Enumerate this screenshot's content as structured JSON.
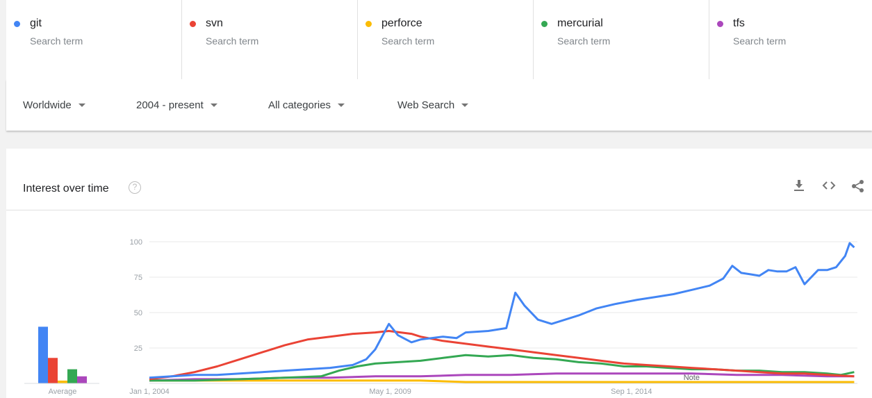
{
  "terms": [
    {
      "name": "git",
      "sub": "Search term",
      "color": "#4285f4"
    },
    {
      "name": "svn",
      "sub": "Search term",
      "color": "#ea4335"
    },
    {
      "name": "perforce",
      "sub": "Search term",
      "color": "#fbbc04"
    },
    {
      "name": "mercurial",
      "sub": "Search term",
      "color": "#34a853"
    },
    {
      "name": "tfs",
      "sub": "Search term",
      "color": "#ab47bc"
    }
  ],
  "filters": {
    "region": "Worldwide",
    "time": "2004 - present",
    "category": "All categories",
    "property": "Web Search"
  },
  "card": {
    "title": "Interest over time",
    "help": "?",
    "icons": [
      "download-icon",
      "embed-icon",
      "share-icon"
    ]
  },
  "chart_data": {
    "type": "line",
    "title": "Interest over time",
    "x_start": "2004-01",
    "x_end": "2017-11",
    "x_ticks": [
      "Jan 1, 2004",
      "May 1, 2009",
      "Sep 1, 2014"
    ],
    "y_ticks": [
      25,
      50,
      75,
      100
    ],
    "ylim": [
      0,
      100
    ],
    "grid": true,
    "note_label": "Note",
    "average": {
      "label": "Average",
      "values": [
        {
          "term": "git",
          "value": 40
        },
        {
          "term": "svn",
          "value": 18
        },
        {
          "term": "perforce",
          "value": 2
        },
        {
          "term": "mercurial",
          "value": 10
        },
        {
          "term": "tfs",
          "value": 5
        }
      ]
    },
    "series": [
      {
        "name": "git",
        "color": "#4285f4",
        "points": [
          [
            2004.0,
            4
          ],
          [
            2004.5,
            5
          ],
          [
            2005.0,
            6
          ],
          [
            2005.5,
            6
          ],
          [
            2006.0,
            7
          ],
          [
            2006.5,
            8
          ],
          [
            2007.0,
            9
          ],
          [
            2007.5,
            10
          ],
          [
            2008.0,
            11
          ],
          [
            2008.5,
            13
          ],
          [
            2008.8,
            17
          ],
          [
            2009.0,
            24
          ],
          [
            2009.3,
            42
          ],
          [
            2009.5,
            34
          ],
          [
            2009.8,
            29
          ],
          [
            2010.0,
            31
          ],
          [
            2010.5,
            33
          ],
          [
            2010.8,
            32
          ],
          [
            2011.0,
            36
          ],
          [
            2011.5,
            37
          ],
          [
            2011.9,
            39
          ],
          [
            2012.1,
            64
          ],
          [
            2012.3,
            55
          ],
          [
            2012.6,
            45
          ],
          [
            2012.9,
            42
          ],
          [
            2013.2,
            45
          ],
          [
            2013.5,
            48
          ],
          [
            2013.9,
            53
          ],
          [
            2014.3,
            56
          ],
          [
            2014.8,
            59
          ],
          [
            2015.2,
            61
          ],
          [
            2015.6,
            63
          ],
          [
            2016.0,
            66
          ],
          [
            2016.4,
            69
          ],
          [
            2016.7,
            74
          ],
          [
            2016.9,
            83
          ],
          [
            2017.1,
            78
          ],
          [
            2017.3,
            77
          ],
          [
            2017.5,
            76
          ],
          [
            2017.7,
            80
          ],
          [
            2017.9,
            79
          ],
          [
            2018.1,
            79
          ],
          [
            2018.3,
            82
          ],
          [
            2018.5,
            70
          ],
          [
            2018.8,
            80
          ],
          [
            2019.0,
            80
          ],
          [
            2019.2,
            82
          ],
          [
            2019.4,
            90
          ],
          [
            2019.5,
            99
          ],
          [
            2019.6,
            96
          ]
        ]
      },
      {
        "name": "svn",
        "color": "#ea4335",
        "points": [
          [
            2004.0,
            3
          ],
          [
            2004.5,
            5
          ],
          [
            2005.0,
            8
          ],
          [
            2005.5,
            12
          ],
          [
            2006.0,
            17
          ],
          [
            2006.5,
            22
          ],
          [
            2007.0,
            27
          ],
          [
            2007.5,
            31
          ],
          [
            2008.0,
            33
          ],
          [
            2008.5,
            35
          ],
          [
            2009.0,
            36
          ],
          [
            2009.3,
            37
          ],
          [
            2009.8,
            35
          ],
          [
            2010.0,
            33
          ],
          [
            2010.5,
            30
          ],
          [
            2011.0,
            28
          ],
          [
            2011.5,
            26
          ],
          [
            2012.0,
            24
          ],
          [
            2012.5,
            22
          ],
          [
            2013.0,
            20
          ],
          [
            2013.5,
            18
          ],
          [
            2014.0,
            16
          ],
          [
            2014.5,
            14
          ],
          [
            2015.0,
            13
          ],
          [
            2015.5,
            12
          ],
          [
            2016.0,
            11
          ],
          [
            2016.5,
            10
          ],
          [
            2017.0,
            9
          ],
          [
            2017.5,
            8
          ],
          [
            2018.0,
            7
          ],
          [
            2018.5,
            7
          ],
          [
            2019.0,
            6
          ],
          [
            2019.6,
            5
          ]
        ]
      },
      {
        "name": "perforce",
        "color": "#fbbc04",
        "points": [
          [
            2004.0,
            2
          ],
          [
            2005.0,
            2
          ],
          [
            2006.0,
            2
          ],
          [
            2007.0,
            2
          ],
          [
            2008.0,
            2
          ],
          [
            2009.0,
            2
          ],
          [
            2010.0,
            2
          ],
          [
            2011.0,
            1
          ],
          [
            2012.0,
            1
          ],
          [
            2013.0,
            1
          ],
          [
            2014.0,
            1
          ],
          [
            2015.0,
            1
          ],
          [
            2016.0,
            1
          ],
          [
            2017.0,
            1
          ],
          [
            2018.0,
            1
          ],
          [
            2019.0,
            1
          ],
          [
            2019.6,
            1
          ]
        ]
      },
      {
        "name": "mercurial",
        "color": "#34a853",
        "points": [
          [
            2004.0,
            2
          ],
          [
            2005.0,
            2
          ],
          [
            2006.0,
            3
          ],
          [
            2007.0,
            4
          ],
          [
            2007.8,
            5
          ],
          [
            2008.2,
            9
          ],
          [
            2008.6,
            12
          ],
          [
            2009.0,
            14
          ],
          [
            2009.5,
            15
          ],
          [
            2010.0,
            16
          ],
          [
            2010.5,
            18
          ],
          [
            2011.0,
            20
          ],
          [
            2011.5,
            19
          ],
          [
            2012.0,
            20
          ],
          [
            2012.5,
            18
          ],
          [
            2013.0,
            17
          ],
          [
            2013.5,
            15
          ],
          [
            2014.0,
            14
          ],
          [
            2014.5,
            12
          ],
          [
            2015.0,
            12
          ],
          [
            2015.5,
            11
          ],
          [
            2016.0,
            10
          ],
          [
            2016.5,
            10
          ],
          [
            2017.0,
            9
          ],
          [
            2017.5,
            9
          ],
          [
            2018.0,
            8
          ],
          [
            2018.5,
            8
          ],
          [
            2019.0,
            7
          ],
          [
            2019.3,
            6
          ],
          [
            2019.6,
            8
          ]
        ]
      },
      {
        "name": "tfs",
        "color": "#ab47bc",
        "points": [
          [
            2004.0,
            2
          ],
          [
            2005.0,
            3
          ],
          [
            2006.0,
            3
          ],
          [
            2007.0,
            4
          ],
          [
            2008.0,
            4
          ],
          [
            2009.0,
            5
          ],
          [
            2010.0,
            5
          ],
          [
            2011.0,
            6
          ],
          [
            2012.0,
            6
          ],
          [
            2013.0,
            7
          ],
          [
            2014.0,
            7
          ],
          [
            2015.0,
            7
          ],
          [
            2016.0,
            7
          ],
          [
            2017.0,
            6
          ],
          [
            2018.0,
            6
          ],
          [
            2019.0,
            5
          ],
          [
            2019.6,
            5
          ]
        ]
      }
    ]
  }
}
